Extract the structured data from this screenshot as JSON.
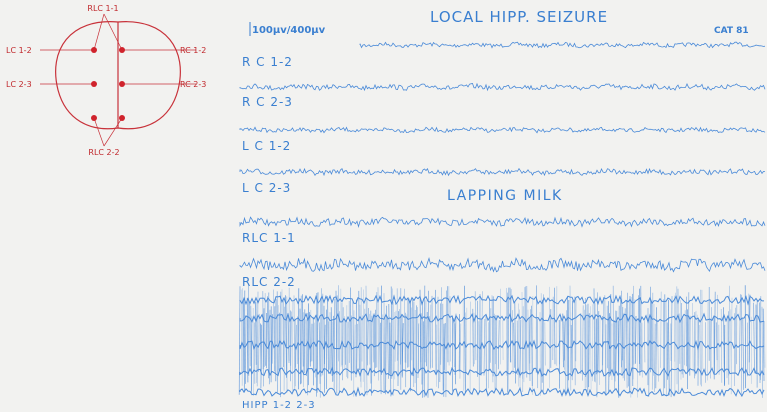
{
  "diagram": {
    "labels": [
      "RLC 1-1",
      "LC 1-2",
      "RC 1-2",
      "LC 2-3",
      "RC 2-3",
      "RLC 2-2"
    ]
  },
  "figure": {
    "title": "LOCAL HIPP. SEIZURE",
    "scale": "100μv/400μv",
    "subject": "CAT 81",
    "event": "LAPPING MILK",
    "traces": [
      "R C 1-2",
      "R C 2-3",
      "L C 1-2",
      "L C 2-3",
      "RLC 1-1",
      "RLC 2-2",
      "HIPP 1-2  2-3"
    ]
  }
}
